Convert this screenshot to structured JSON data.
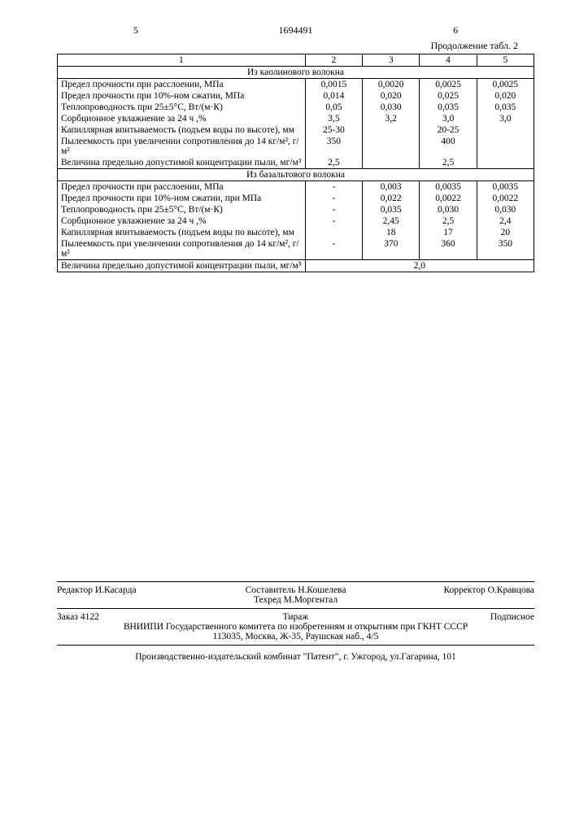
{
  "header": {
    "left_num": "5",
    "doc_num": "1694491",
    "right_num": "6",
    "continuation": "Продолжение табл. 2"
  },
  "table": {
    "col_headers": [
      "1",
      "2",
      "3",
      "4",
      "5"
    ],
    "section1_title": "Из каолинового волокна",
    "section1_rows": [
      {
        "label": "Предел прочности при расслоении, МПа",
        "v": [
          "0,0015",
          "0,0020",
          "0,0025",
          "0,0025"
        ]
      },
      {
        "label": "Предел прочности при 10%-ном сжатии, МПа",
        "v": [
          "0,014",
          "0,020",
          "0,025",
          "0,020"
        ]
      },
      {
        "label": "Теплопроводность при 25±5°С, Вт/(м·К)",
        "v": [
          "0,05",
          "0,030",
          "0,035",
          "0,035"
        ]
      },
      {
        "label": "Сорбционное увлажнение за 24 ч ,%",
        "v": [
          "3,5",
          "3,2",
          "3,0",
          "3,0"
        ]
      },
      {
        "label": "Капиллярная впитываемость (подъем воды по высоте), мм",
        "v": [
          "25-30",
          "",
          "20-25",
          ""
        ]
      },
      {
        "label": "Пылеемкость при увеличении сопротивления до 14 кг/м², г/м²",
        "v": [
          "350",
          "",
          "400",
          ""
        ]
      },
      {
        "label": "Величина предельно допустимой концентрации пыли, мг/м³",
        "v": [
          "2,5",
          "",
          "2,5",
          ""
        ]
      }
    ],
    "section2_title": "Из базальтового волокна",
    "section2_rows": [
      {
        "label": "Предел прочности при расслоении, МПа",
        "v": [
          "-",
          "0,003",
          "0,0035",
          "0,0035"
        ]
      },
      {
        "label": "Предел прочности при 10%-ном сжатии, при МПа",
        "v": [
          "-",
          "0,022",
          "0,0022",
          "0,0022"
        ]
      },
      {
        "label": "Теплопроводность при 25±5°С, Вт/(м·К)",
        "v": [
          "-",
          "0,035",
          "0,030",
          "0,030"
        ]
      },
      {
        "label": "Сорбционное увлажнение за 24 ч ,%",
        "v": [
          "-",
          "2,45",
          "2,5",
          "2,4"
        ]
      },
      {
        "label": "Капиллярная впитываемость (подъем воды по высоте), мм",
        "v": [
          "",
          "18",
          "17",
          "20"
        ]
      },
      {
        "label": "Пылеемкость при увеличении сопротивления до 14 кг/м², г/м²",
        "v": [
          "-",
          "370",
          "360",
          "350"
        ]
      }
    ],
    "footer_row": {
      "label": "Величина предельно допустимой концентрации пыли, мг/м³",
      "value": "2,0"
    }
  },
  "footer": {
    "editor_label": "Редактор",
    "editor": "И.Касарда",
    "compiler_label": "Составитель",
    "compiler": "Н.Кошелева",
    "tech_label": "Техред",
    "tech": "М.Моргентал",
    "corrector_label": "Корректор",
    "corrector": "О.Кравцова",
    "order_label": "Заказ",
    "order": "4122",
    "tirazh": "Тираж",
    "podpisnoe": "Подписное",
    "org": "ВНИИПИ Государственного комитета по изобретениям и открытиям при ГКНТ СССР",
    "addr": "113035, Москва, Ж-35, Раушская наб., 4/5",
    "colophon": "Производственно-издательский комбинат \"Патент\", г. Ужгород, ул.Гагарина, 101"
  }
}
